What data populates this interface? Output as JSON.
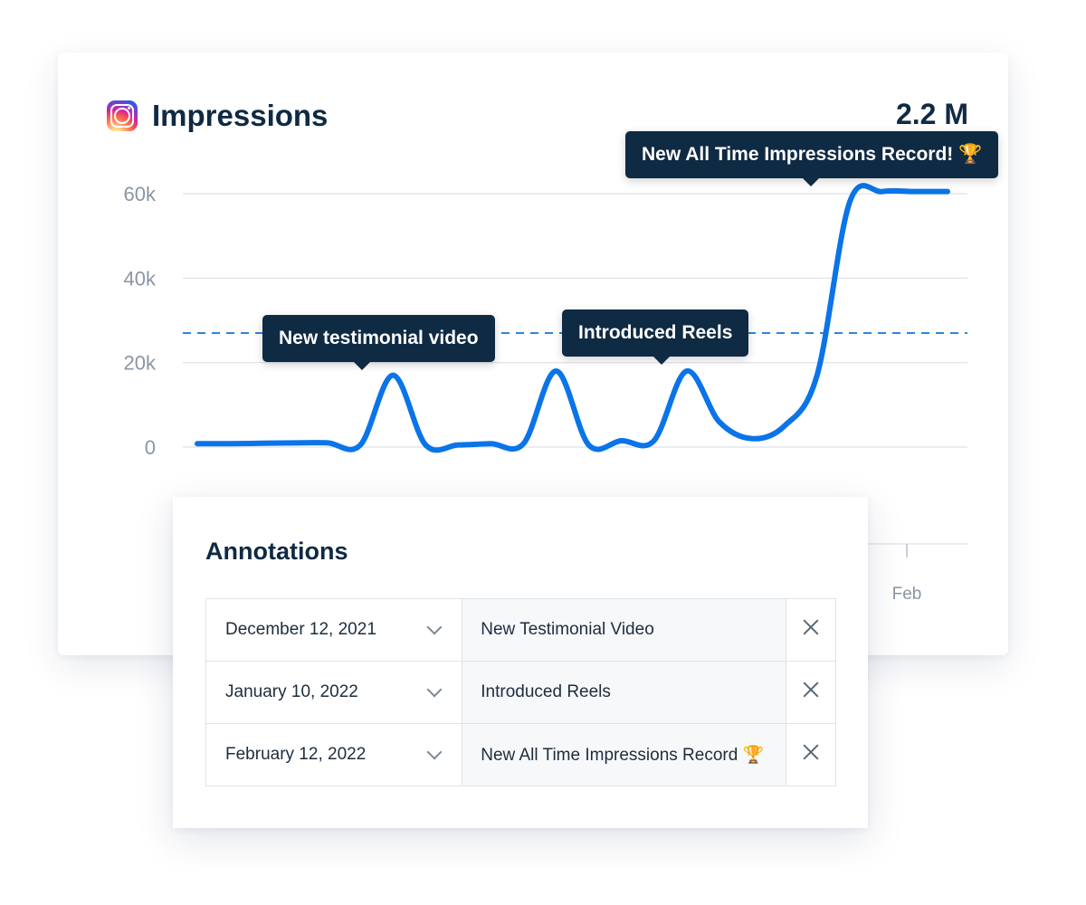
{
  "header": {
    "title": "Impressions",
    "total": "2.2 M"
  },
  "icons": {
    "brand": "instagram-icon",
    "expand": "chevron-down-icon",
    "remove": "close-icon",
    "trophy": "trophy-icon"
  },
  "colors": {
    "line": "#0a74e8",
    "reference_line": "#2b86e0",
    "tooltip_bg": "#0f2a43",
    "text": "#0f2a43"
  },
  "chart_data": {
    "type": "line",
    "title": "Impressions",
    "xlabel": "",
    "ylabel": "",
    "ylim": [
      0,
      60000
    ],
    "yticks": [
      "60k",
      "40k",
      "20k",
      "0"
    ],
    "xticks": [
      "Feb"
    ],
    "grid": true,
    "reference_line": 27000,
    "series": [
      {
        "values": [
          800,
          800,
          900,
          1000,
          1000,
          500,
          17000,
          500,
          500,
          800,
          800,
          18000,
          500,
          1500,
          1500,
          18000,
          6000,
          2000,
          5000,
          17000,
          58000,
          60500,
          60500,
          60500
        ]
      }
    ],
    "annotations": [
      {
        "text": "New testimonial video",
        "index": 6
      },
      {
        "text": "Introduced Reels",
        "index": 15
      },
      {
        "text": "New All Time Impressions Record! 🏆",
        "index": 21
      }
    ]
  },
  "annotations_panel": {
    "title": "Annotations",
    "rows": [
      {
        "date": "December 12, 2021",
        "label": "New Testimonial Video"
      },
      {
        "date": "January 10, 2022",
        "label": "Introduced Reels"
      },
      {
        "date": "February 12, 2022",
        "label": "New All Time Impressions Record 🏆"
      }
    ]
  }
}
